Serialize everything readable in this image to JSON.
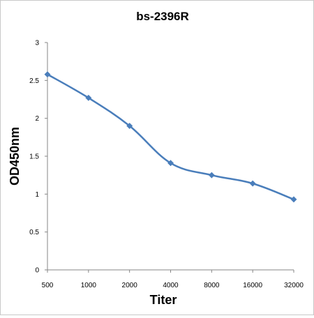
{
  "chart_data": {
    "type": "line",
    "title": "bs-2396R",
    "xlabel": "Titer",
    "ylabel": "OD450nm",
    "categories": [
      "500",
      "1000",
      "2000",
      "4000",
      "8000",
      "16000",
      "32000"
    ],
    "series": [
      {
        "values": [
          2.58,
          2.27,
          1.9,
          1.41,
          1.25,
          1.14,
          0.93
        ]
      }
    ],
    "ylim": [
      0,
      3
    ],
    "yticks": [
      "0",
      "0.5",
      "1",
      "1.5",
      "2",
      "2.5",
      "3"
    ],
    "grid": false,
    "legend": "none",
    "line_color": "#4a7ebb",
    "marker": "diamond"
  }
}
